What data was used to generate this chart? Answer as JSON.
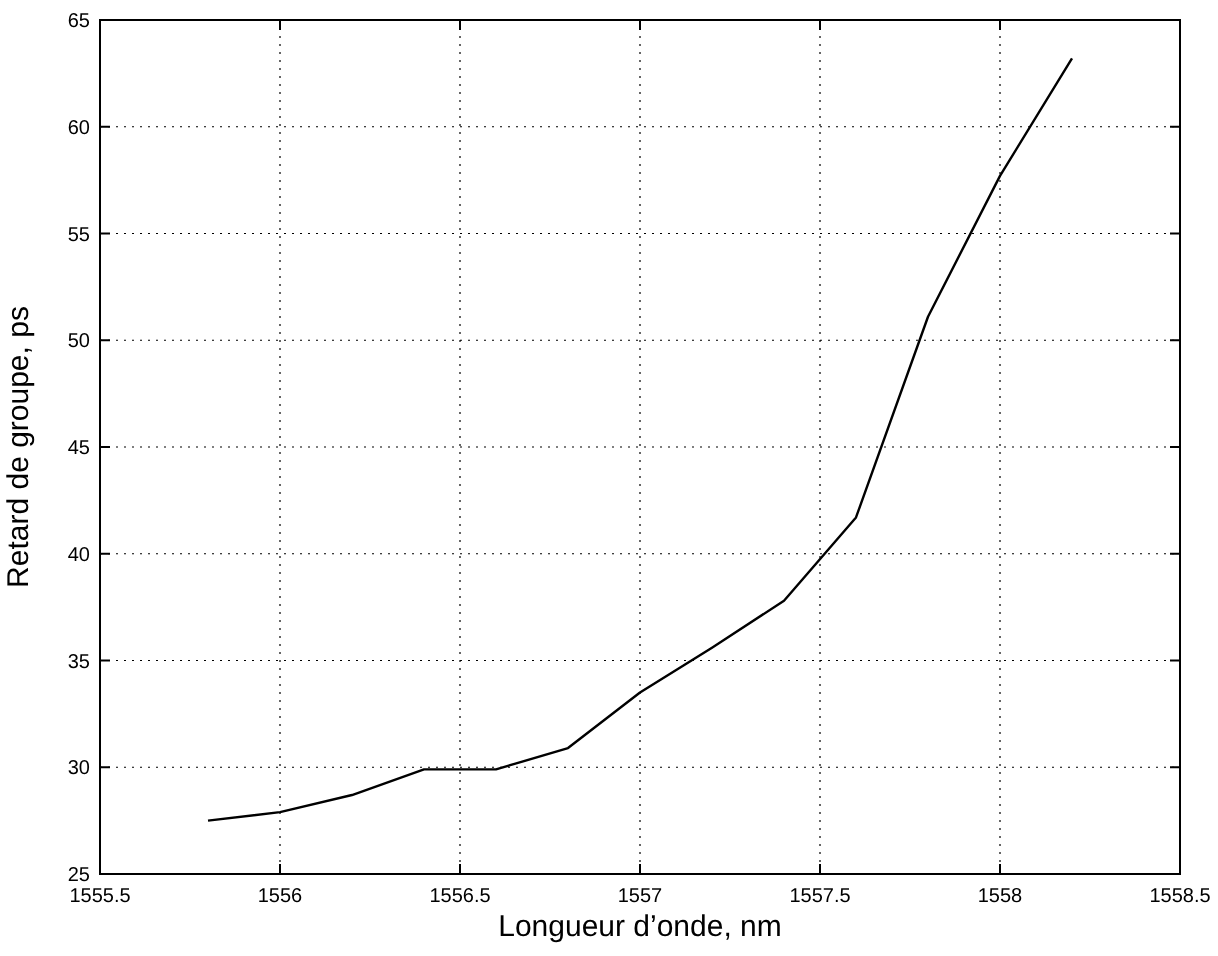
{
  "chart_data": {
    "type": "line",
    "xlabel": "Longueur d’onde, nm",
    "ylabel": "Retard de groupe, ps",
    "x": [
      1555.8,
      1556,
      1556.2,
      1556.4,
      1556.6,
      1556.8,
      1557,
      1557.2,
      1557.4,
      1557.6,
      1557.8,
      1558,
      1558.2
    ],
    "series": [
      {
        "color": "#000000",
        "values": [
          27.5,
          27.9,
          28.7,
          29.9,
          29.9,
          30.9,
          33.5,
          35.6,
          37.8,
          41.7,
          51.1,
          57.7,
          63.2
        ]
      }
    ],
    "xlim": [
      1555.5,
      1558.5
    ],
    "xticks": [
      1555.5,
      1556,
      1556.5,
      1557,
      1557.5,
      1558,
      1558.5
    ],
    "ylim": [
      25,
      65
    ],
    "yticks": [
      25,
      30,
      35,
      40,
      45,
      50,
      55,
      60,
      65
    ],
    "grid": true,
    "marker": "none",
    "line_style": "solid"
  }
}
